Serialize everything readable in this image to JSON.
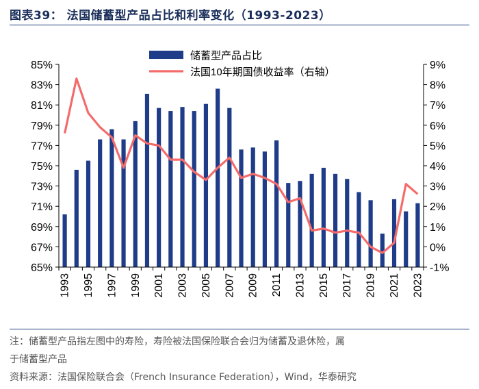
{
  "header": {
    "title": "图表39：  法国储蓄型产品占比和利率变化（1993-2023）"
  },
  "notes": {
    "line1": "注：储蓄型产品指左图中的寿险，寿险被法国保险联合会归为储蓄及退休险，属",
    "line2": "于储蓄型产品",
    "source": "资料来源：法国保险联合会（French Insurance Federation），Wind，华泰研究"
  },
  "chart_data": {
    "type": "bar+line",
    "title": "法国储蓄型产品占比和利率变化（1993-2023）",
    "x": [
      1993,
      1994,
      1995,
      1996,
      1997,
      1998,
      1999,
      2000,
      2001,
      2002,
      2003,
      2004,
      2005,
      2006,
      2007,
      2008,
      2009,
      2010,
      2011,
      2012,
      2013,
      2014,
      2015,
      2016,
      2017,
      2018,
      2019,
      2020,
      2021,
      2022,
      2023
    ],
    "x_tick_labels": [
      "1993",
      "1995",
      "1997",
      "1999",
      "2001",
      "2003",
      "2005",
      "2007",
      "2009",
      "2011",
      "2013",
      "2015",
      "2017",
      "2019",
      "2021",
      "2023"
    ],
    "left_axis": {
      "min": 65,
      "max": 85,
      "step": 2,
      "tick_labels": [
        "65%",
        "67%",
        "69%",
        "71%",
        "73%",
        "75%",
        "77%",
        "79%",
        "81%",
        "83%",
        "85%"
      ]
    },
    "right_axis": {
      "min": -1,
      "max": 9,
      "step": 1,
      "tick_labels": [
        "-1%",
        "0%",
        "1%",
        "2%",
        "3%",
        "4%",
        "5%",
        "6%",
        "7%",
        "8%",
        "9%"
      ]
    },
    "series": [
      {
        "name": "储蓄型产品占比",
        "kind": "bar",
        "axis": "left",
        "color": "#1f3c88",
        "values": [
          70.2,
          74.6,
          75.5,
          77.6,
          78.6,
          77.6,
          79.4,
          82.1,
          80.7,
          80.4,
          80.8,
          80.4,
          81.1,
          82.6,
          80.7,
          76.6,
          76.8,
          76.4,
          77.5,
          73.3,
          73.5,
          74.2,
          74.8,
          74.2,
          73.7,
          72.4,
          71.6,
          68.3,
          71.7,
          70.5,
          71.3
        ]
      },
      {
        "name": "法国10年期国债收益率（右轴）",
        "kind": "line",
        "axis": "right",
        "color": "#f46b6b",
        "values": [
          5.6,
          8.3,
          6.6,
          5.9,
          5.4,
          3.9,
          5.5,
          5.1,
          5.0,
          4.3,
          4.3,
          3.7,
          3.3,
          3.9,
          4.4,
          3.4,
          3.6,
          3.4,
          3.1,
          2.2,
          2.4,
          0.8,
          0.9,
          0.7,
          0.8,
          0.7,
          0.0,
          -0.3,
          0.2,
          3.1,
          2.6
        ]
      }
    ]
  }
}
